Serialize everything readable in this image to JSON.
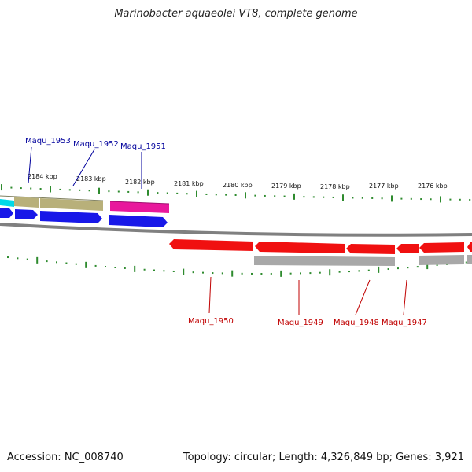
{
  "title": "Marinobacter aquaeolei VT8, complete genome",
  "accession": "Accession: NC_008740",
  "summary": "Topology: circular; Length: 4,326,849 bp; Genes: 3,921",
  "colors": {
    "ticks": "#2e8b2e",
    "backbone": "#808080",
    "forward_label": "#00009c",
    "reverse_label": "#c00000"
  },
  "kbp_labels": [
    "2184 kbp",
    "2183 kbp",
    "2182 kbp",
    "2181 kbp",
    "2180 kbp",
    "2179 kbp",
    "2178 kbp",
    "2177 kbp",
    "2176 kbp"
  ],
  "forward_labels": [
    "Maqu_1953",
    "Maqu_1952",
    "Maqu_1951"
  ],
  "reverse_labels": [
    "Maqu_1950",
    "Maqu_1949",
    "Maqu_1948",
    "Maqu_1947"
  ]
}
